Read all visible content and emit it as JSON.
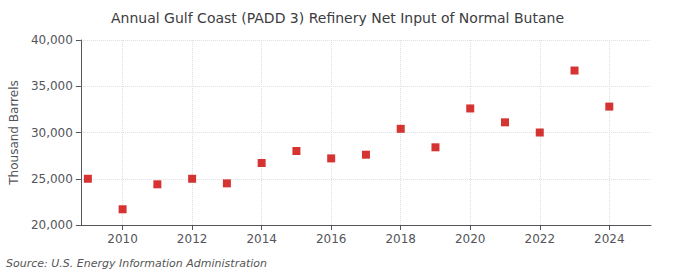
{
  "chart_data": {
    "type": "scatter",
    "title": "Annual Gulf Coast (PADD 3) Refinery Net Input of Normal Butane",
    "ylabel": "Thousand Barrels",
    "source": "Source: U.S. Energy Information Administration",
    "x": [
      2009,
      2010,
      2011,
      2012,
      2013,
      2014,
      2015,
      2016,
      2017,
      2018,
      2019,
      2020,
      2021,
      2022,
      2023,
      2024
    ],
    "values": [
      25000,
      21700,
      24400,
      25000,
      24500,
      26700,
      28000,
      27200,
      27600,
      30400,
      28400,
      32600,
      31100,
      30000,
      36700,
      32800
    ],
    "xlim": [
      2008.8,
      2025.2
    ],
    "xticks": [
      2010,
      2012,
      2014,
      2016,
      2018,
      2020,
      2022,
      2024
    ],
    "ylim": [
      20000,
      40000
    ],
    "yticks": [
      {
        "value": 20000,
        "label": "20,000"
      },
      {
        "value": 25000,
        "label": "25,000"
      },
      {
        "value": 30000,
        "label": "30,000"
      },
      {
        "value": 35000,
        "label": "35,000"
      },
      {
        "value": 40000,
        "label": "40,000"
      }
    ],
    "color": "#cc0000",
    "marker": "square",
    "grid": true
  }
}
